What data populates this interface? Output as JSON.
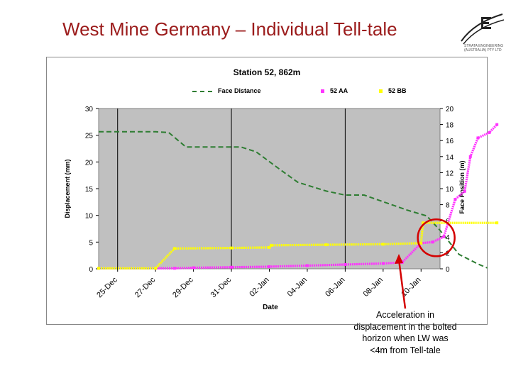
{
  "slide": {
    "title": "West Mine Germany – Individual Tell-tale",
    "logo_caption": [
      "STRATA ENGINEERING",
      "(AUSTRALIA) PTY LTD"
    ]
  },
  "callout": {
    "lines": [
      "Acceleration in",
      "displacement in the bolted",
      "horizon when LW was",
      "<4m from Tell-tale"
    ],
    "color": "#d40000"
  },
  "chart_data": {
    "type": "line",
    "title": "Station 52, 862m",
    "xlabel": "Date",
    "ylabel": "Displacement (mm)",
    "y2label": "Face Position (m)",
    "x_ticks": [
      "25-Dec",
      "27-Dec",
      "29-Dec",
      "31-Dec",
      "02-Jan",
      "04-Jan",
      "06-Jan",
      "08-Jan",
      "10-Jan"
    ],
    "x_range": [
      "24-Dec",
      "11-Jan"
    ],
    "ylim": [
      0,
      30
    ],
    "yticks": [
      0,
      5,
      10,
      15,
      20,
      25,
      30
    ],
    "y2lim": [
      0,
      20
    ],
    "y2ticks": [
      0,
      2,
      4,
      6,
      8,
      10,
      12,
      14,
      16,
      18,
      20
    ],
    "grid": false,
    "plot_background": "#c0c0c0",
    "legend_position": "top",
    "vertical_markers": [
      "25-Dec",
      "31-Dec",
      "06-Jan"
    ],
    "series": [
      {
        "name": "Face Distance",
        "axis": "right",
        "style": "dashed",
        "color": "#2e7d32",
        "points": [
          [
            "24-Dec",
            17.1
          ],
          [
            "27-Dec",
            17.1
          ],
          [
            "27.7-Dec",
            17.0
          ],
          [
            "28.6-Dec",
            15.2
          ],
          [
            "31.5-Dec",
            15.2
          ],
          [
            "32.3-Dec",
            14.6
          ],
          [
            "33.5-Dec",
            12.5
          ],
          [
            "34.5-Dec",
            10.8
          ],
          [
            "36-Dec",
            9.7
          ],
          [
            "37-Dec",
            9.2
          ],
          [
            "38-Dec",
            9.2
          ],
          [
            "40.3-Dec",
            7.3
          ],
          [
            "41.3-Dec",
            6.6
          ],
          [
            "42-Dec",
            4.8
          ],
          [
            "43-Dec",
            1.8
          ],
          [
            "44-Dec",
            0.6
          ],
          [
            "44.5-Dec",
            0.1
          ]
        ]
      },
      {
        "name": "52 AA",
        "axis": "left",
        "style": "markers",
        "color": "#ff33ff",
        "points": [
          [
            "24-Dec",
            0.1
          ],
          [
            "27-Dec",
            0.1
          ],
          [
            "28-Dec",
            0.1
          ],
          [
            "29-Dec",
            0.2
          ],
          [
            "31-Dec",
            0.3
          ],
          [
            "33-Dec",
            0.4
          ],
          [
            "35-Dec",
            0.6
          ],
          [
            "37-Dec",
            0.8
          ],
          [
            "39-Dec",
            1.0
          ],
          [
            "40-Dec",
            1.2
          ],
          [
            "41-Dec",
            4.8
          ],
          [
            "41.6-Dec",
            5.0
          ],
          [
            "42.2-Dec",
            6.0
          ],
          [
            "42.8-Dec",
            13.0
          ],
          [
            "43.3-Dec",
            14.5
          ],
          [
            "43.6-Dec",
            21.0
          ],
          [
            "44-Dec",
            24.5
          ],
          [
            "44.6-Dec",
            25.5
          ],
          [
            "45-Dec",
            27.0
          ]
        ]
      },
      {
        "name": "52 BB",
        "axis": "left",
        "style": "markers",
        "color": "#ffff00",
        "points": [
          [
            "24-Dec",
            0.1
          ],
          [
            "27-Dec",
            0.1
          ],
          [
            "28-Dec",
            3.8
          ],
          [
            "31-Dec",
            3.9
          ],
          [
            "33-Dec",
            4.0
          ],
          [
            "33.1-Dec",
            4.4
          ],
          [
            "36-Dec",
            4.5
          ],
          [
            "39-Dec",
            4.6
          ],
          [
            "41-Dec",
            4.8
          ],
          [
            "41.1-Dec",
            8.6
          ],
          [
            "45-Dec",
            8.6
          ]
        ]
      }
    ]
  }
}
